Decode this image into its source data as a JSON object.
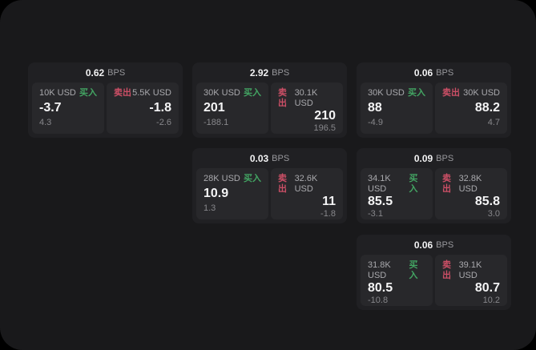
{
  "labels": {
    "bps": "BPS",
    "buy": "买入",
    "sell": "卖出"
  },
  "colors": {
    "buy": "#43a563",
    "sell": "#cc4f66",
    "panel_bg": "#19191b",
    "card_bg": "#202023",
    "tile_bg": "#28282b"
  },
  "cards": [
    {
      "bps": "0.62",
      "buy": {
        "amount": "10K USD",
        "value": "-3.7",
        "sub": "4.3"
      },
      "sell": {
        "amount": "5.5K USD",
        "value": "-1.8",
        "sub": "-2.6"
      }
    },
    {
      "bps": "2.92",
      "buy": {
        "amount": "30K USD",
        "value": "201",
        "sub": "-188.1"
      },
      "sell": {
        "amount": "30.1K USD",
        "value": "210",
        "sub": "196.5"
      }
    },
    {
      "bps": "0.06",
      "buy": {
        "amount": "30K USD",
        "value": "88",
        "sub": "-4.9"
      },
      "sell": {
        "amount": "30K USD",
        "value": "88.2",
        "sub": "4.7"
      }
    },
    {
      "bps": "0.03",
      "buy": {
        "amount": "28K USD",
        "value": "10.9",
        "sub": "1.3"
      },
      "sell": {
        "amount": "32.6K USD",
        "value": "11",
        "sub": "-1.8"
      }
    },
    {
      "bps": "0.09",
      "buy": {
        "amount": "34.1K USD",
        "value": "85.5",
        "sub": "-3.1"
      },
      "sell": {
        "amount": "32.8K USD",
        "value": "85.8",
        "sub": "3.0"
      }
    },
    {
      "bps": "0.06",
      "buy": {
        "amount": "31.8K USD",
        "value": "80.5",
        "sub": "-10.8"
      },
      "sell": {
        "amount": "39.1K USD",
        "value": "80.7",
        "sub": "10.2"
      }
    }
  ]
}
